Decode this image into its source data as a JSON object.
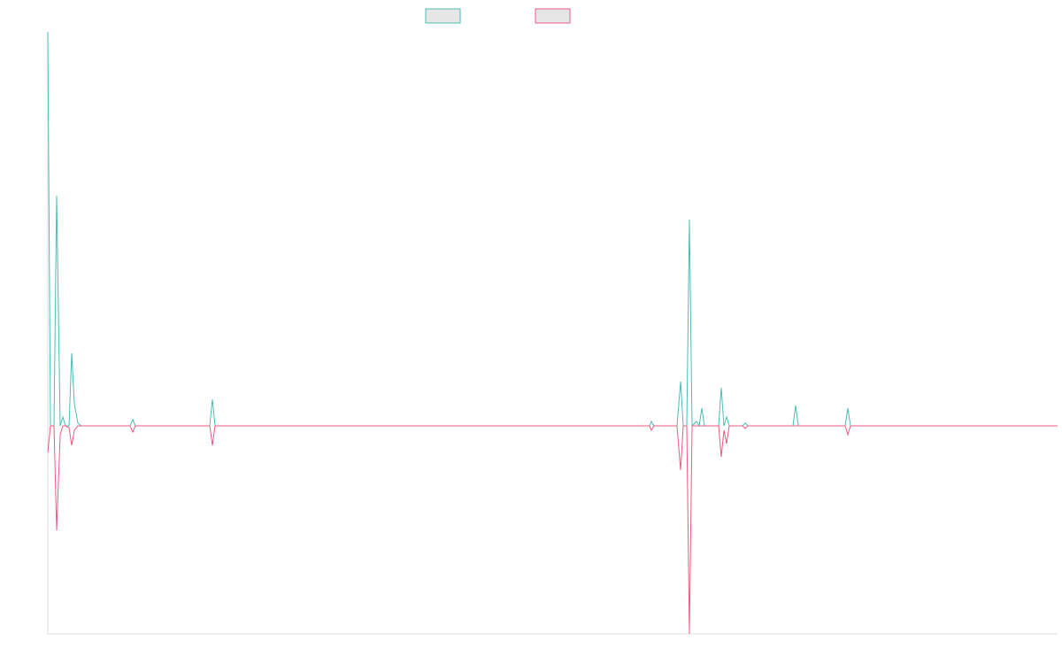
{
  "chart_data": {
    "type": "line",
    "x": [
      0,
      3,
      7,
      10,
      14,
      17,
      20,
      24,
      27,
      30,
      34,
      38,
      93,
      96,
      99,
      183,
      186,
      189,
      680,
      682,
      685,
      711,
      715,
      718,
      722,
      725,
      728,
      733,
      736,
      739,
      742,
      758,
      761,
      764,
      767,
      770,
      785,
      788,
      791,
      842,
      845,
      848,
      901,
      904,
      907,
      1141
    ],
    "series": [
      {
        "color": "#4bbdb4",
        "values": [
          445,
          0,
          0,
          260,
          0,
          10,
          0,
          0,
          82,
          25,
          3,
          0,
          0,
          7,
          0,
          0,
          30,
          0,
          0,
          5,
          0,
          0,
          50,
          0,
          0,
          233,
          0,
          5,
          0,
          20,
          0,
          0,
          43,
          0,
          10,
          0,
          0,
          3,
          0,
          0,
          23,
          0,
          0,
          20,
          0,
          0
        ]
      },
      {
        "color": "#ef5a82",
        "values": [
          -30,
          0,
          0,
          -118,
          -10,
          0,
          0,
          -2,
          -22,
          -5,
          0,
          0,
          0,
          -7,
          0,
          0,
          -22,
          0,
          0,
          -5,
          0,
          0,
          -50,
          0,
          0,
          -235,
          0,
          0,
          0,
          0,
          0,
          0,
          -35,
          -5,
          -20,
          0,
          0,
          -3,
          0,
          0,
          0,
          0,
          0,
          -10,
          0,
          0
        ]
      }
    ],
    "xlim": [
      0,
      1141
    ],
    "ylim": [
      -235,
      445
    ]
  }
}
